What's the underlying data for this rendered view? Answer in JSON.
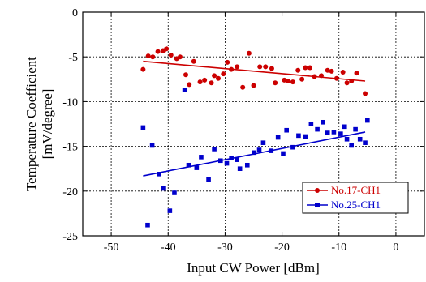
{
  "chart_data": {
    "type": "scatter",
    "title": "",
    "xlabel": "Input CW Power [dBm]",
    "ylabel": "Temperature Coefficient",
    "ylabel2": "[mV/degree]",
    "xlim": [
      -55,
      5
    ],
    "ylim": [
      -25,
      0
    ],
    "xticks": [
      -50,
      -40,
      -30,
      -20,
      -10,
      0
    ],
    "yticks": [
      0,
      -5,
      -10,
      -15,
      -20,
      -25
    ],
    "grid": true,
    "grid_style": "dotted",
    "legend_position": "bottom-right",
    "series": [
      {
        "name": "No.17-CH1",
        "color": "#cc0000",
        "marker": "circle",
        "points": [
          [
            -44.4,
            -6.4
          ],
          [
            -43.5,
            -4.9
          ],
          [
            -42.7,
            -5.0
          ],
          [
            -41.8,
            -4.4
          ],
          [
            -40.9,
            -4.3
          ],
          [
            -40.3,
            -4.1
          ],
          [
            -39.5,
            -4.8
          ],
          [
            -38.5,
            -5.2
          ],
          [
            -37.9,
            -5.0
          ],
          [
            -36.9,
            -7.0
          ],
          [
            -36.3,
            -8.1
          ],
          [
            -35.5,
            -5.5
          ],
          [
            -34.4,
            -7.8
          ],
          [
            -33.6,
            -7.6
          ],
          [
            -32.4,
            -7.9
          ],
          [
            -31.9,
            -7.1
          ],
          [
            -31.2,
            -7.4
          ],
          [
            -30.3,
            -6.9
          ],
          [
            -29.6,
            -5.6
          ],
          [
            -28.9,
            -6.4
          ],
          [
            -27.9,
            -6.1
          ],
          [
            -26.9,
            -8.4
          ],
          [
            -25.8,
            -4.6
          ],
          [
            -25.0,
            -8.2
          ],
          [
            -23.9,
            -6.1
          ],
          [
            -22.9,
            -6.1
          ],
          [
            -21.8,
            -6.3
          ],
          [
            -21.2,
            -7.9
          ],
          [
            -19.6,
            -7.6
          ],
          [
            -18.9,
            -7.7
          ],
          [
            -18.1,
            -7.8
          ],
          [
            -17.2,
            -6.5
          ],
          [
            -16.5,
            -7.5
          ],
          [
            -15.9,
            -6.2
          ],
          [
            -15.1,
            -6.2
          ],
          [
            -14.3,
            -7.2
          ],
          [
            -13.1,
            -7.1
          ],
          [
            -12.0,
            -6.5
          ],
          [
            -11.3,
            -6.6
          ],
          [
            -10.4,
            -7.4
          ],
          [
            -9.3,
            -6.7
          ],
          [
            -8.6,
            -7.9
          ],
          [
            -7.8,
            -7.7
          ],
          [
            -6.9,
            -6.8
          ],
          [
            -5.4,
            -9.1
          ]
        ],
        "fit": [
          [
            -44.4,
            -5.5
          ],
          [
            -5.4,
            -7.7
          ]
        ]
      },
      {
        "name": "No.25-CH1",
        "color": "#0000cc",
        "marker": "square",
        "points": [
          [
            -44.4,
            -12.9
          ],
          [
            -43.6,
            -23.8
          ],
          [
            -42.8,
            -14.9
          ],
          [
            -41.6,
            -18.1
          ],
          [
            -40.9,
            -19.7
          ],
          [
            -39.7,
            -22.2
          ],
          [
            -38.9,
            -20.2
          ],
          [
            -37.1,
            -8.7
          ],
          [
            -36.4,
            -17.1
          ],
          [
            -35.0,
            -17.4
          ],
          [
            -34.2,
            -16.2
          ],
          [
            -32.9,
            -18.7
          ],
          [
            -31.9,
            -15.3
          ],
          [
            -30.8,
            -16.6
          ],
          [
            -29.7,
            -16.9
          ],
          [
            -28.9,
            -16.3
          ],
          [
            -27.9,
            -16.5
          ],
          [
            -27.4,
            -17.5
          ],
          [
            -26.1,
            -17.1
          ],
          [
            -24.9,
            -15.7
          ],
          [
            -24.0,
            -15.4
          ],
          [
            -23.3,
            -14.6
          ],
          [
            -21.9,
            -15.5
          ],
          [
            -20.7,
            -14.0
          ],
          [
            -19.8,
            -15.8
          ],
          [
            -19.2,
            -13.2
          ],
          [
            -18.1,
            -15.1
          ],
          [
            -17.1,
            -13.8
          ],
          [
            -15.9,
            -13.9
          ],
          [
            -14.9,
            -12.5
          ],
          [
            -13.8,
            -13.1
          ],
          [
            -12.8,
            -12.3
          ],
          [
            -12.0,
            -13.5
          ],
          [
            -10.9,
            -13.4
          ],
          [
            -9.7,
            -13.6
          ],
          [
            -9.0,
            -12.8
          ],
          [
            -8.6,
            -14.2
          ],
          [
            -7.8,
            -14.9
          ],
          [
            -7.1,
            -13.1
          ],
          [
            -6.3,
            -14.2
          ],
          [
            -5.4,
            -14.6
          ],
          [
            -5.0,
            -12.1
          ]
        ],
        "fit": [
          [
            -44.4,
            -18.3
          ],
          [
            -5.4,
            -13.4
          ]
        ]
      }
    ]
  }
}
